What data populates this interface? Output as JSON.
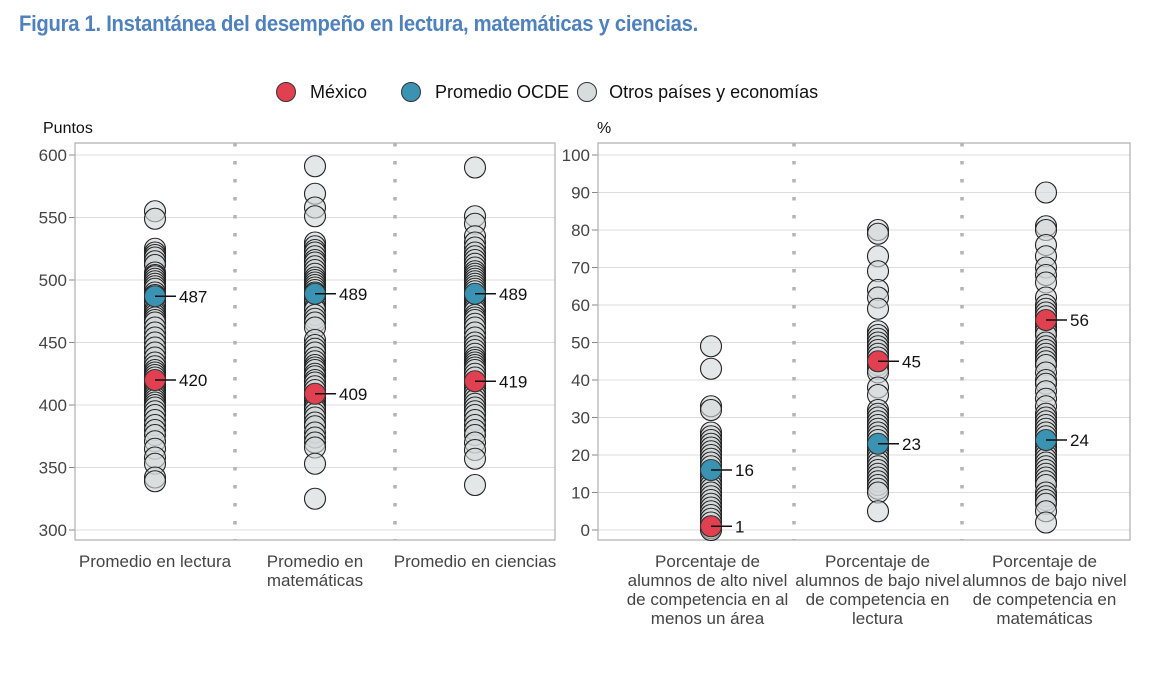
{
  "figure": {
    "title": "Figura 1. Instantánea del desempeño en lectura, matemáticas y ciencias."
  },
  "legend": {
    "items": [
      {
        "label": "México",
        "color": "#e04050"
      },
      {
        "label": "Promedio OCDE",
        "color": "#3a93b2"
      },
      {
        "label": "Otros países y economías",
        "color": "#d7dcdd"
      }
    ]
  },
  "chart_data": [
    {
      "type": "scatter",
      "title": "",
      "ylabel": "Puntos",
      "ylim": [
        300,
        600
      ],
      "yticks": [
        300,
        350,
        400,
        450,
        500,
        550,
        600
      ],
      "grid": true,
      "legend_position": "top-center",
      "categories": [
        "Promedio en lectura",
        "Promedio en matemáticas",
        "Promedio en ciencias"
      ],
      "series": [
        {
          "name": "México",
          "values": [
            420,
            409,
            419
          ],
          "labels": [
            "420",
            "409",
            "419"
          ]
        },
        {
          "name": "Promedio OCDE",
          "values": [
            487,
            489,
            489
          ],
          "labels": [
            "487",
            "489",
            "489"
          ]
        },
        {
          "name": "Otros países y economías",
          "values": [
            [
              555,
              549,
              525,
              522,
              520,
              518,
              515,
              512,
              506,
              504,
              503,
              501,
              499,
              497,
              495,
              493,
              490,
              488,
              485,
              483,
              481,
              479,
              476,
              474,
              472,
              470,
              468,
              466,
              462,
              458,
              454,
              450,
              446,
              442,
              438,
              434,
              431,
              428,
              426,
              424,
              422,
              418,
              416,
              414,
              412,
              410,
              408,
              406,
              404,
              402,
              400,
              398,
              395,
              392,
              388,
              384,
              380,
              376,
              371,
              365,
              358,
              353,
              342,
              339
            ],
            [
              591,
              569,
              558,
              551,
              530,
              527,
              524,
              522,
              519,
              516,
              514,
              511,
              508,
              505,
              502,
              500,
              498,
              496,
              494,
              492,
              490,
              487,
              485,
              483,
              481,
              478,
              476,
              472,
              469,
              466,
              462,
              452,
              448,
              445,
              442,
              438,
              435,
              432,
              430,
              428,
              425,
              423,
              420,
              418,
              415,
              412,
              406,
              403,
              400,
              398,
              396,
              393,
              390,
              386,
              383,
              378,
              374,
              370,
              366,
              353,
              325
            ],
            [
              590,
              551,
              545,
              535,
              530,
              526,
              522,
              519,
              516,
              513,
              510,
              507,
              505,
              503,
              501,
              499,
              497,
              495,
              493,
              491,
              487,
              485,
              483,
              481,
              479,
              477,
              475,
              472,
              470,
              468,
              465,
              462,
              458,
              454,
              450,
              447,
              444,
              441,
              438,
              436,
              434,
              432,
              430,
              428,
              425,
              422,
              416,
              413,
              410,
              407,
              404,
              401,
              398,
              395,
              392,
              388,
              384,
              380,
              376,
              370,
              364,
              357,
              336
            ]
          ]
        }
      ]
    },
    {
      "type": "scatter",
      "title": "",
      "ylabel": "%",
      "ylim": [
        0,
        100
      ],
      "yticks": [
        0,
        10,
        20,
        30,
        40,
        50,
        60,
        70,
        80,
        90,
        100
      ],
      "grid": true,
      "categories": [
        "Porcentaje de alumnos de alto nivel de competencia en al menos un área",
        "Porcentaje de alumnos de bajo nivel de competencia en lectura",
        "Porcentaje de alumnos de bajo nivel de competencia en matemáticas"
      ],
      "series": [
        {
          "name": "México",
          "values": [
            1,
            45,
            56
          ],
          "labels": [
            "1",
            "45",
            "56"
          ]
        },
        {
          "name": "Promedio OCDE",
          "values": [
            16,
            23,
            24
          ],
          "labels": [
            "16",
            "23",
            "24"
          ]
        },
        {
          "name": "Otros países y economías",
          "values": [
            [
              49,
              43,
              33,
              32,
              26,
              25,
              24,
              23,
              22,
              21,
              20,
              19,
              18,
              17,
              15,
              14,
              13,
              12,
              11,
              10,
              9,
              8,
              7,
              6,
              5,
              4,
              3,
              2,
              1,
              0.5,
              0
            ],
            [
              80,
              79,
              73,
              69,
              64,
              62,
              59,
              53,
              52,
              51,
              50,
              49,
              48,
              47,
              46,
              44,
              43,
              42,
              38,
              36,
              32,
              31,
              30,
              29,
              28,
              27,
              26,
              25,
              24,
              22,
              21,
              20,
              19,
              18,
              17,
              16,
              15,
              14,
              13,
              12,
              11,
              10,
              5
            ],
            [
              90,
              81,
              80,
              76,
              73,
              70,
              68,
              66,
              62,
              60,
              59,
              58,
              57,
              55,
              54,
              53,
              52,
              50,
              49,
              48,
              47,
              46,
              45,
              44,
              42,
              40,
              39,
              37,
              35,
              33,
              31,
              30,
              29,
              28,
              27,
              26,
              25,
              23,
              22,
              21,
              20,
              19,
              18,
              17,
              16,
              15,
              14,
              13,
              12,
              10,
              9,
              8,
              7,
              5,
              2
            ]
          ]
        }
      ]
    }
  ]
}
